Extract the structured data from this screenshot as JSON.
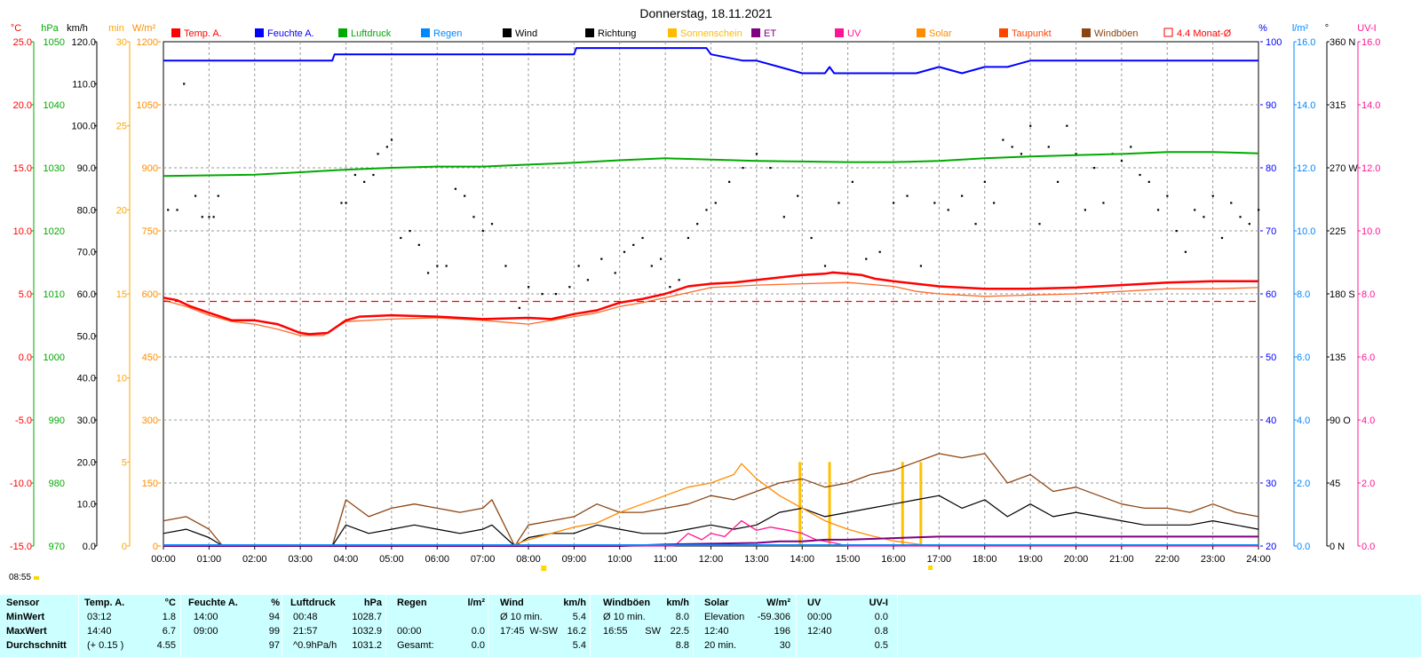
{
  "title": "Donnerstag, 18.11.2021",
  "current_time": "08:55",
  "legend": [
    {
      "label": "Temp. A.",
      "color": "#ff0000"
    },
    {
      "label": "Feuchte A.",
      "color": "#0000ff"
    },
    {
      "label": "Luftdruck",
      "color": "#00aa00"
    },
    {
      "label": "Regen",
      "color": "#0088ff"
    },
    {
      "label": "Wind",
      "color": "#000000"
    },
    {
      "label": "Richtung",
      "color": "#000000"
    },
    {
      "label": "Sonnenschein",
      "color": "#ffbb00"
    },
    {
      "label": "ET",
      "color": "#800080"
    },
    {
      "label": "UV",
      "color": "#ff1493"
    },
    {
      "label": "Solar",
      "color": "#ff8c00"
    },
    {
      "label": "Taupunkt",
      "color": "#ff4500"
    },
    {
      "label": "Windböen",
      "color": "#8b4513"
    },
    {
      "label": "4.4 Monat-Ø",
      "color": "#ff0000"
    }
  ],
  "axes": {
    "temp": {
      "unit": "°C",
      "color": "#ff0000",
      "ticks": [
        "25.0",
        "20.0",
        "15.0",
        "10.0",
        "5.0",
        "0.0",
        "-5.0",
        "-10.0",
        "-15.0"
      ]
    },
    "pressure": {
      "unit": "hPa",
      "color": "#00aa00",
      "ticks": [
        "1050",
        "1040",
        "1030",
        "1020",
        "1010",
        "1000",
        "990",
        "980",
        "970"
      ]
    },
    "wind": {
      "unit": "km/h",
      "color": "#000000",
      "ticks": [
        "120.0",
        "110.0",
        "100.0",
        "90.0",
        "80.0",
        "70.0",
        "60.0",
        "50.0",
        "40.0",
        "30.0",
        "20.0",
        "10.0",
        "0.0"
      ]
    },
    "sunshine": {
      "unit": "min",
      "color": "#ffa500",
      "ticks": [
        "30",
        "25",
        "20",
        "15",
        "10",
        "5",
        "0"
      ]
    },
    "solar": {
      "unit": "W/m²",
      "color": "#ff8c00",
      "ticks": [
        "1200",
        "1050",
        "900",
        "750",
        "600",
        "450",
        "300",
        "150",
        "0"
      ]
    },
    "humidity": {
      "unit": "%",
      "color": "#0000ff",
      "ticks": [
        "100",
        "90",
        "80",
        "70",
        "60",
        "50",
        "40",
        "30",
        "20"
      ]
    },
    "rain": {
      "unit": "l/m²",
      "color": "#0088ff",
      "ticks": [
        "16.0",
        "14.0",
        "12.0",
        "10.0",
        "8.0",
        "6.0",
        "4.0",
        "2.0",
        "0.0"
      ]
    },
    "direction": {
      "unit": "°",
      "color": "#000000",
      "ticks": [
        "360 N",
        "315",
        "270 W",
        "225",
        "180 S",
        "135",
        "90 O",
        "45",
        "0 N"
      ]
    },
    "uv": {
      "unit": "UV-I",
      "color": "#ff1493",
      "ticks": [
        "16.0",
        "14.0",
        "12.0",
        "10.0",
        "8.0",
        "6.0",
        "4.0",
        "2.0",
        "0.0"
      ]
    }
  },
  "x_ticks": [
    "00:00",
    "01:00",
    "02:00",
    "03:00",
    "04:00",
    "05:00",
    "06:00",
    "07:00",
    "08:00",
    "09:00",
    "10:00",
    "11:00",
    "12:00",
    "13:00",
    "14:00",
    "15:00",
    "16:00",
    "17:00",
    "18:00",
    "19:00",
    "20:00",
    "21:00",
    "22:00",
    "23:00",
    "24:00"
  ],
  "chart_data": {
    "type": "line",
    "x_unit": "hours",
    "xlim": [
      0,
      24
    ],
    "series": [
      {
        "name": "Temp. A.",
        "unit": "°C",
        "x": [
          0,
          0.3,
          0.6,
          1,
          1.5,
          2,
          2.5,
          3,
          3.2,
          3.6,
          4,
          4.3,
          5,
          6,
          7,
          8,
          8.5,
          9,
          9.5,
          10,
          10.5,
          11,
          11.5,
          12,
          12.5,
          13,
          13.5,
          14,
          14.5,
          14.67,
          15,
          15.3,
          15.6,
          16,
          16.5,
          17,
          17.5,
          18,
          19,
          20,
          21,
          22,
          23,
          24
        ],
        "y": [
          4.7,
          4.5,
          4.0,
          3.5,
          2.9,
          2.9,
          2.6,
          1.9,
          1.8,
          1.9,
          2.9,
          3.2,
          3.3,
          3.2,
          3.0,
          3.1,
          3.0,
          3.4,
          3.7,
          4.3,
          4.6,
          5.0,
          5.6,
          5.8,
          5.9,
          6.1,
          6.3,
          6.5,
          6.6,
          6.7,
          6.6,
          6.5,
          6.2,
          6.0,
          5.8,
          5.6,
          5.5,
          5.4,
          5.4,
          5.5,
          5.7,
          5.9,
          6.0,
          6.0
        ]
      },
      {
        "name": "Taupunkt",
        "unit": "°C",
        "x": [
          0,
          0.5,
          1,
          1.5,
          2,
          2.5,
          3,
          3.5,
          4,
          5,
          6,
          7,
          8,
          9,
          9.5,
          10,
          10.5,
          11,
          11.5,
          12,
          12.5,
          13,
          14,
          15,
          16,
          16.5,
          17,
          18,
          19,
          20,
          21,
          22,
          23,
          24
        ],
        "y": [
          4.5,
          4.0,
          3.3,
          2.8,
          2.6,
          2.2,
          1.7,
          1.7,
          2.8,
          3.0,
          3.1,
          2.9,
          2.6,
          3.2,
          3.5,
          4.0,
          4.3,
          4.7,
          5.1,
          5.5,
          5.6,
          5.7,
          5.8,
          5.9,
          5.6,
          5.2,
          5.0,
          4.8,
          4.9,
          5.0,
          5.2,
          5.4,
          5.4,
          5.5
        ]
      },
      {
        "name": "4.4 Monat-Ø",
        "unit": "°C",
        "x": [
          0,
          24
        ],
        "y": [
          4.4,
          4.4
        ]
      },
      {
        "name": "Feuchte A.",
        "unit": "%",
        "x": [
          0,
          3.7,
          3.75,
          9,
          9.05,
          11.9,
          12,
          12.7,
          13,
          13.5,
          14,
          14.5,
          14.6,
          14.7,
          15,
          16,
          16.5,
          17,
          17.5,
          18,
          18.5,
          19,
          20,
          21,
          22,
          23,
          24
        ],
        "y": [
          97,
          97,
          98,
          98,
          99,
          99,
          98,
          97,
          97,
          96,
          95,
          95,
          96,
          95,
          95,
          95,
          95,
          96,
          95,
          96,
          96,
          97,
          97,
          97,
          97,
          97,
          97
        ]
      },
      {
        "name": "Luftdruck",
        "unit": "hPa",
        "x": [
          0,
          1,
          2,
          3,
          4,
          5,
          6,
          7,
          8,
          9,
          10,
          11,
          12,
          13,
          14,
          15,
          16,
          17,
          18,
          19,
          20,
          21,
          22,
          23,
          24
        ],
        "y": [
          1028.7,
          1028.8,
          1028.9,
          1029.3,
          1029.7,
          1030.0,
          1030.2,
          1030.2,
          1030.5,
          1030.8,
          1031.2,
          1031.5,
          1031.3,
          1031.1,
          1031.0,
          1030.9,
          1030.9,
          1031.1,
          1031.5,
          1031.8,
          1032.0,
          1032.2,
          1032.5,
          1032.5,
          1032.3
        ]
      },
      {
        "name": "Wind",
        "unit": "km/h",
        "x": [
          0,
          0.5,
          1,
          1.3,
          3.7,
          4,
          4.5,
          5,
          5.5,
          6,
          6.5,
          7,
          7.2,
          7.7,
          8,
          8.5,
          9,
          9.5,
          10,
          10.5,
          11,
          11.5,
          12,
          12.5,
          13,
          13.5,
          14,
          14.5,
          15,
          15.5,
          16,
          16.5,
          17,
          17.5,
          18,
          18.5,
          19,
          19.5,
          20,
          20.5,
          21,
          21.5,
          22,
          22.5,
          23,
          23.5,
          24
        ],
        "y": [
          3,
          4,
          2,
          0,
          0,
          5,
          3,
          4,
          5,
          4,
          3,
          4,
          5,
          0,
          2,
          3,
          3,
          5,
          4,
          3,
          3,
          4,
          5,
          4,
          5,
          8,
          9,
          7,
          8,
          9,
          10,
          11,
          12,
          9,
          11,
          7,
          10,
          7,
          8,
          7,
          6,
          5,
          5,
          5,
          6,
          5,
          4
        ]
      },
      {
        "name": "Windböen",
        "unit": "km/h",
        "x": [
          0,
          0.5,
          1,
          1.3,
          3.7,
          4,
          4.5,
          5,
          5.5,
          6,
          6.5,
          7,
          7.2,
          7.7,
          8,
          8.5,
          9,
          9.5,
          10,
          10.5,
          11,
          11.5,
          12,
          12.5,
          13,
          13.5,
          14,
          14.5,
          15,
          15.5,
          16,
          16.5,
          17,
          17.5,
          18,
          18.5,
          19,
          19.5,
          20,
          20.5,
          21,
          21.5,
          22,
          22.5,
          23,
          23.5,
          24
        ],
        "y": [
          6,
          7,
          4,
          0,
          0,
          11,
          7,
          9,
          10,
          9,
          8,
          9,
          11,
          0,
          5,
          6,
          7,
          10,
          8,
          8,
          9,
          10,
          12,
          11,
          13,
          15,
          16,
          14,
          15,
          17,
          18,
          20,
          22,
          21,
          22,
          15,
          17,
          13,
          14,
          12,
          10,
          9,
          9,
          8,
          10,
          8,
          7
        ]
      },
      {
        "name": "Solar",
        "unit": "W/m²",
        "x": [
          0,
          7.6,
          8,
          8.5,
          9,
          9.5,
          10,
          10.5,
          11,
          11.5,
          12,
          12.5,
          12.67,
          13,
          13.5,
          14,
          14.5,
          15,
          15.5,
          16,
          16.5,
          16.8,
          17,
          24
        ],
        "y": [
          0,
          0,
          15,
          30,
          45,
          55,
          80,
          100,
          120,
          140,
          150,
          170,
          196,
          160,
          120,
          90,
          60,
          40,
          25,
          12,
          5,
          0,
          0,
          0
        ]
      },
      {
        "name": "UV",
        "unit": "UV-I",
        "x": [
          0,
          11.2,
          11.5,
          11.8,
          12,
          12.3,
          12.67,
          13,
          13.3,
          13.7,
          14,
          14.3,
          14.7,
          15,
          24
        ],
        "y": [
          0,
          0,
          0.4,
          0.2,
          0.4,
          0.3,
          0.8,
          0.5,
          0.6,
          0.5,
          0.4,
          0.2,
          0.1,
          0,
          0
        ]
      },
      {
        "name": "ET",
        "unit": "l/m²",
        "x": [
          0,
          10,
          11,
          13,
          13.5,
          14,
          14.5,
          15,
          16,
          17,
          18,
          24
        ],
        "y": [
          0,
          0,
          0.05,
          0.1,
          0.15,
          0.15,
          0.2,
          0.2,
          0.25,
          0.3,
          0.3,
          0.3
        ]
      }
    ],
    "sunshine_bars": {
      "x": [
        13.95,
        14.6,
        16.2,
        16.6
      ],
      "minutes": [
        5,
        5,
        5,
        5
      ]
    },
    "direction_points": {
      "x": [
        0.1,
        0.3,
        0.45,
        0.7,
        0.85,
        1.0,
        1.1,
        1.2,
        3.9,
        4.0,
        4.2,
        4.4,
        4.6,
        4.7,
        4.9,
        5.0,
        5.2,
        5.4,
        5.6,
        5.8,
        6.0,
        6.2,
        6.4,
        6.6,
        6.8,
        7.0,
        7.2,
        7.5,
        7.8,
        8.0,
        8.3,
        8.6,
        8.9,
        9.1,
        9.3,
        9.6,
        9.9,
        10.1,
        10.3,
        10.5,
        10.7,
        10.9,
        11.1,
        11.3,
        11.5,
        11.7,
        11.9,
        12.1,
        12.4,
        12.7,
        13.0,
        13.3,
        13.6,
        13.9,
        14.2,
        14.5,
        14.8,
        15.1,
        15.4,
        15.7,
        16.0,
        16.3,
        16.6,
        16.9,
        17.2,
        17.5,
        17.8,
        18.0,
        18.2,
        18.4,
        18.6,
        18.8,
        19.0,
        19.2,
        19.4,
        19.6,
        19.8,
        20.0,
        20.2,
        20.4,
        20.6,
        20.8,
        21.0,
        21.2,
        21.4,
        21.6,
        21.8,
        22.0,
        22.2,
        22.4,
        22.6,
        22.8,
        23.0,
        23.2,
        23.4,
        23.6,
        23.8,
        24.0
      ],
      "deg": [
        240,
        240,
        330,
        250,
        235,
        235,
        235,
        250,
        245,
        245,
        265,
        260,
        265,
        280,
        285,
        290,
        220,
        225,
        215,
        195,
        200,
        200,
        255,
        250,
        235,
        225,
        230,
        200,
        170,
        185,
        180,
        180,
        185,
        200,
        190,
        205,
        195,
        210,
        215,
        220,
        200,
        205,
        185,
        190,
        220,
        230,
        240,
        245,
        260,
        270,
        280,
        270,
        235,
        250,
        220,
        200,
        245,
        260,
        205,
        210,
        245,
        250,
        200,
        245,
        240,
        250,
        230,
        260,
        245,
        290,
        285,
        280,
        300,
        230,
        285,
        260,
        300,
        280,
        240,
        270,
        245,
        280,
        275,
        285,
        265,
        260,
        240,
        250,
        225,
        210,
        240,
        235,
        250,
        220,
        245,
        235,
        230,
        240
      ]
    }
  },
  "stats": {
    "headers": {
      "sensor": "Sensor",
      "temp": "Temp. A.",
      "temp_unit": "°C",
      "hum": "Feuchte A.",
      "hum_unit": "%",
      "press": "Luftdruck",
      "press_unit": "hPa",
      "rain": "Regen",
      "rain_unit": "l/m²",
      "wind": "Wind",
      "wind_unit": "km/h",
      "gust": "Windböen",
      "gust_unit": "km/h",
      "solar": "Solar",
      "solar_unit": "W/m²",
      "uv": "UV",
      "uv_unit": "UV-I"
    },
    "rows": [
      {
        "label": "MinWert",
        "temp_t": "03:12",
        "temp_v": "1.8",
        "hum_t": "14:00",
        "hum_v": "94",
        "press_t": "00:48",
        "press_v": "1028.7",
        "rain_t": "",
        "rain_v": "",
        "wind_t": "Ø 10 min.",
        "wind_v": "5.4",
        "gust_t": "Ø 10 min.",
        "gust_v": "8.0",
        "solar_t": "Elevation",
        "solar_v": "-59.306",
        "uv_t": "00:00",
        "uv_v": "0.0"
      },
      {
        "label": "MaxWert",
        "temp_t": "14:40",
        "temp_v": "6.7",
        "hum_t": "09:00",
        "hum_v": "99",
        "press_t": "21:57",
        "press_v": "1032.9",
        "rain_t": "00:00",
        "rain_v": "0.0",
        "wind_t": "17:45",
        "wind_dir": "W-SW",
        "wind_v": "16.2",
        "gust_t": "16:55",
        "gust_dir": "SW",
        "gust_v": "22.5",
        "solar_t": "12:40",
        "solar_v": "196",
        "uv_t": "12:40",
        "uv_v": "0.8"
      },
      {
        "label": "Durchschnitt",
        "temp_t": "(+ 0.15 )",
        "temp_v": "4.55",
        "hum_t": "",
        "hum_v": "97",
        "press_t": "^0.9hPa/h",
        "press_v": "1031.2",
        "rain_t": "Gesamt:",
        "rain_v": "0.0",
        "wind_t": "",
        "wind_v": "5.4",
        "gust_t": "",
        "gust_v": "8.8",
        "solar_t": "20 min.",
        "solar_v": "30",
        "uv_t": "",
        "uv_v": "0.5"
      }
    ]
  }
}
